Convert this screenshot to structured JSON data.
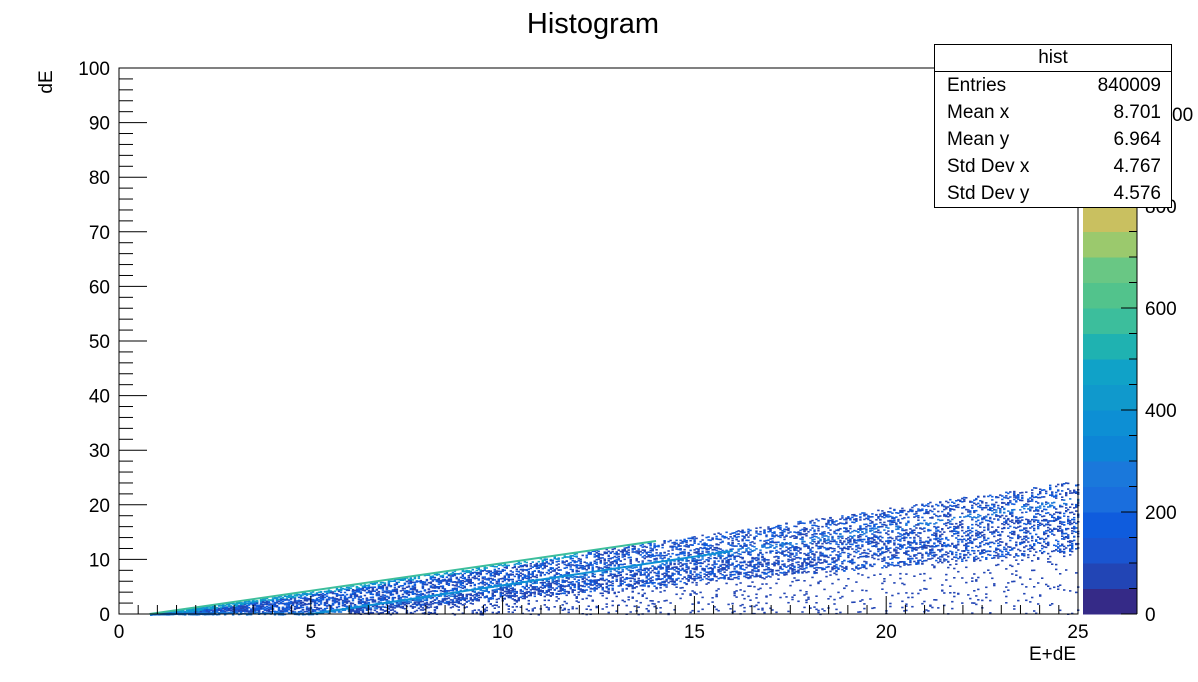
{
  "chart_data": {
    "type": "heatmap",
    "title": "Histogram",
    "xlabel": "E+dE",
    "ylabel": "dE",
    "xlim": [
      0,
      25
    ],
    "ylim": [
      0,
      100
    ],
    "x_ticks": [
      "0",
      "5",
      "10",
      "15",
      "20",
      "25"
    ],
    "y_ticks": [
      "0",
      "10",
      "20",
      "30",
      "40",
      "50",
      "60",
      "70",
      "80",
      "90",
      "100"
    ],
    "colorbar": {
      "range": [
        0,
        1000
      ],
      "ticks": [
        "0",
        "200",
        "400",
        "600",
        "800"
      ],
      "top_label_fragment": "00",
      "palette": [
        "#352a87",
        "#2245b5",
        "#0f5cdd",
        "#1a78db",
        "#0d8fd4",
        "#10a2c8",
        "#1fb2b1",
        "#3cbe9c",
        "#69c784",
        "#9bc96d",
        "#c9c060",
        "#f0bf4a",
        "#f9e02a"
      ]
    },
    "bands": [
      {
        "description": "upper dense locus",
        "from": [
          0.8,
          0.0
        ],
        "to": [
          25,
          24.5
        ],
        "peak_color": "#f0bf4a"
      },
      {
        "description": "lower broad band",
        "from": [
          5.0,
          0.0
        ],
        "to": [
          25,
          21.0
        ],
        "peak_color": "#1a78db"
      }
    ],
    "stats": {
      "name": "hist",
      "rows": [
        {
          "key": "Entries",
          "value": "840009"
        },
        {
          "key": "Mean x",
          "value": "8.701"
        },
        {
          "key": "Mean y",
          "value": "6.964"
        },
        {
          "key": "Std Dev x",
          "value": "4.767"
        },
        {
          "key": "Std Dev y",
          "value": "4.576"
        }
      ]
    }
  }
}
